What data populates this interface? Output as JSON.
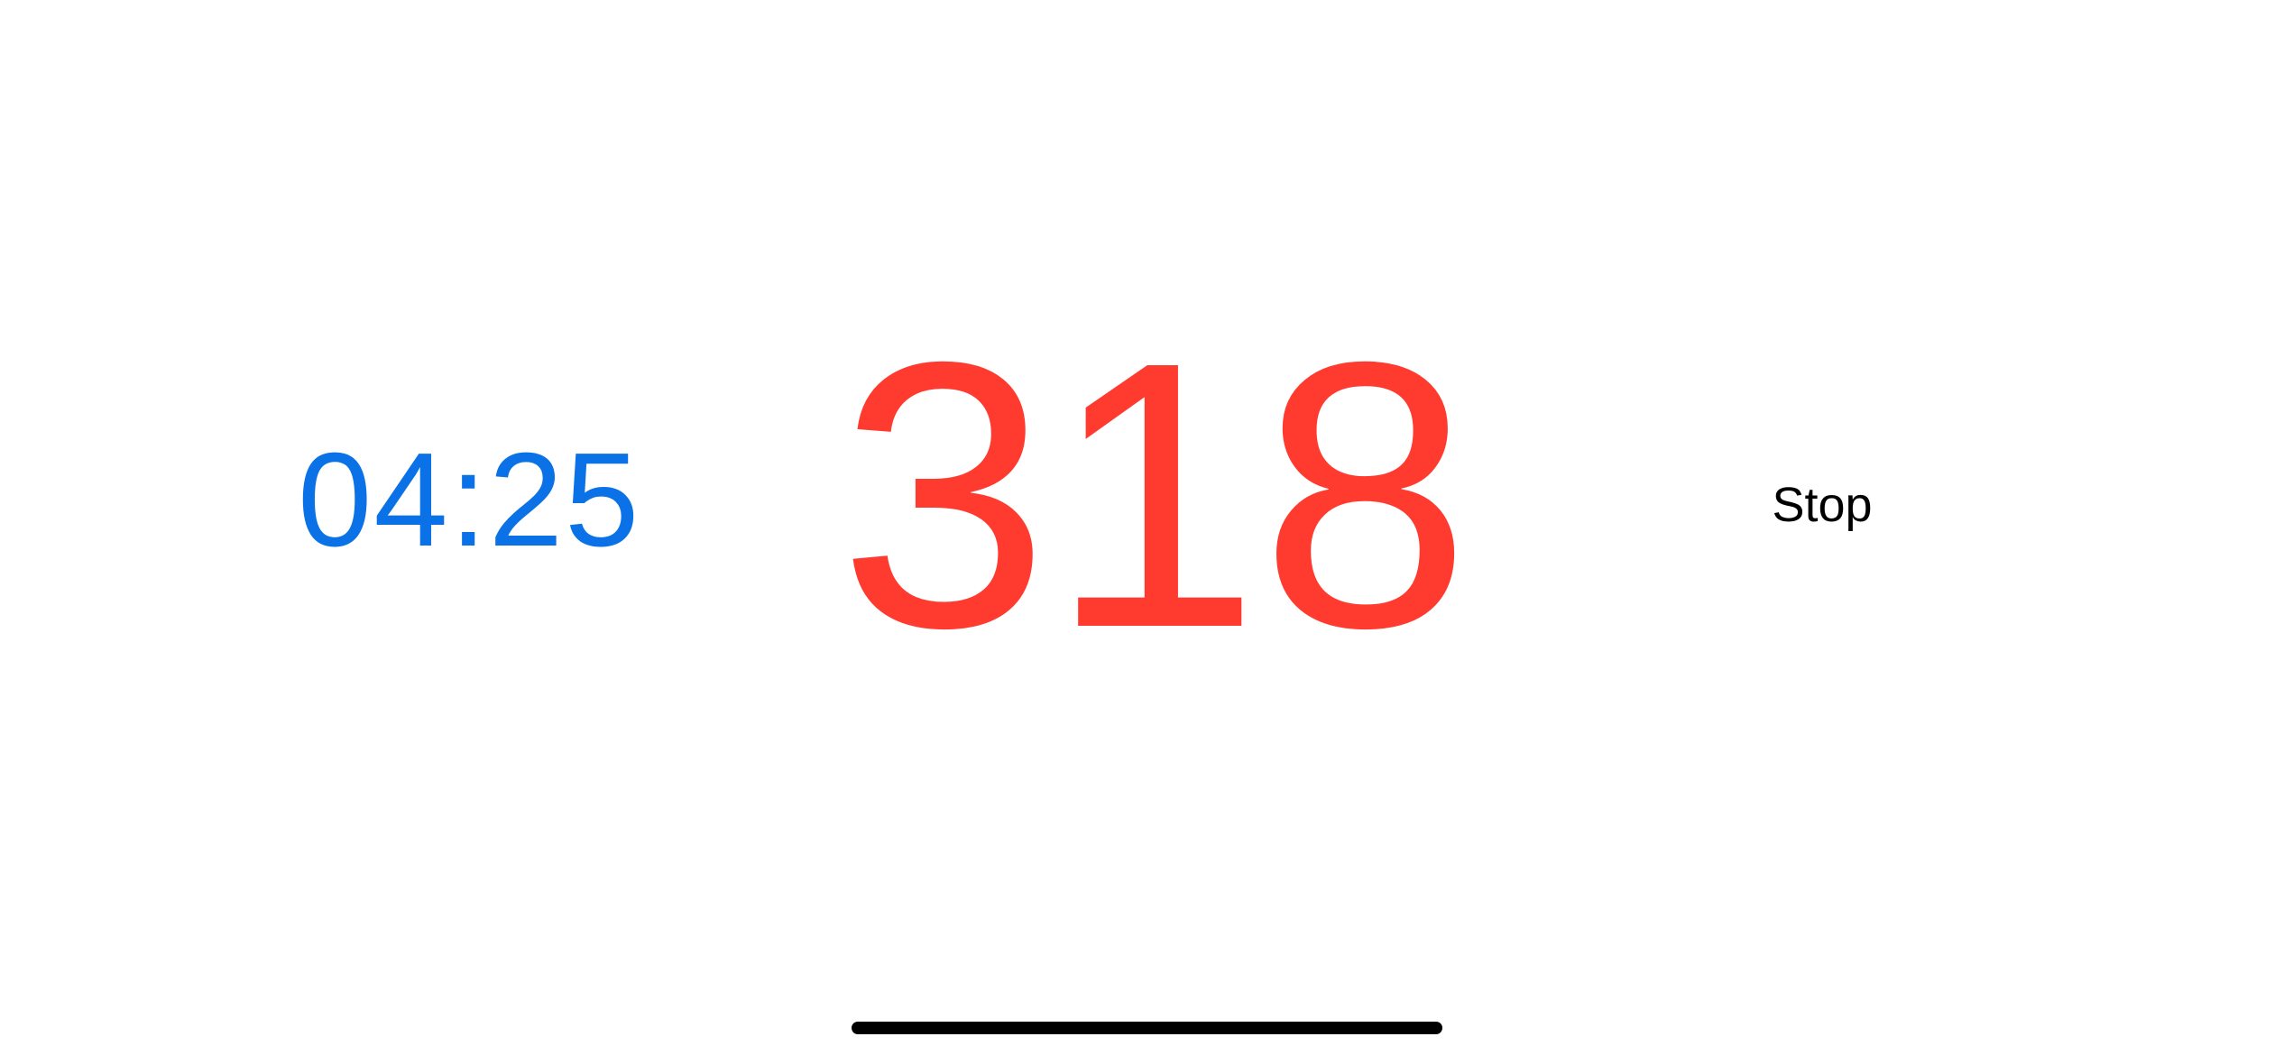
{
  "timer": {
    "elapsed": "04:25",
    "color": "#0a72e6"
  },
  "counter": {
    "value": "318",
    "color": "#ff3b30"
  },
  "controls": {
    "stop_label": "Stop"
  },
  "colors": {
    "background": "#ffffff",
    "home_indicator": "#000000"
  }
}
